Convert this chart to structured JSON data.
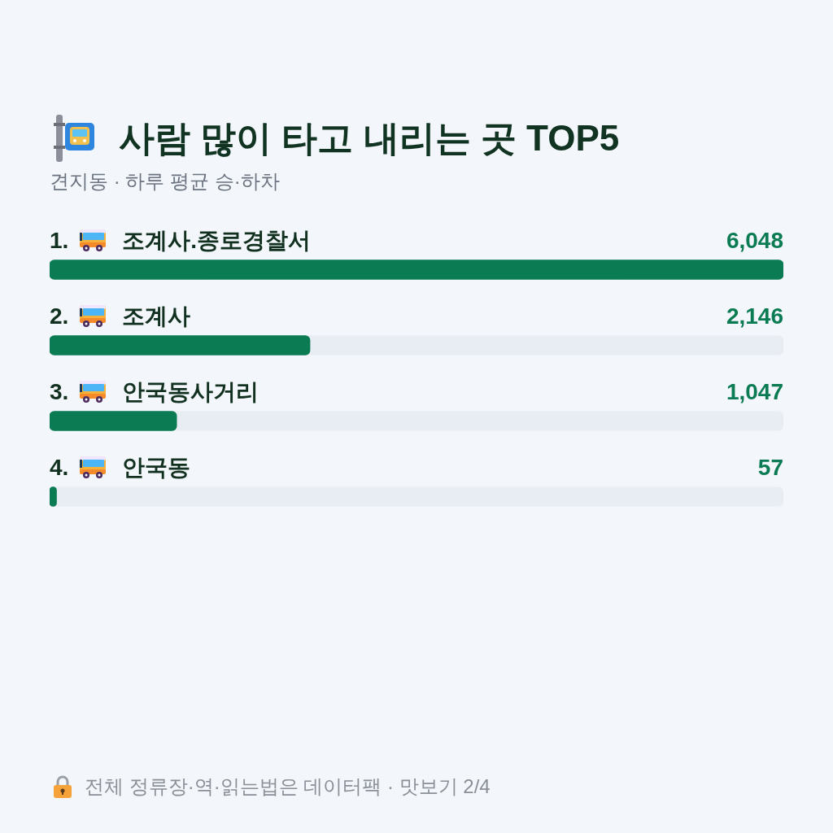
{
  "chart_data": {
    "type": "bar",
    "orientation": "horizontal",
    "title": "사람 많이 타고 내리는 곳 TOP5",
    "subtitle": "견지동 · 하루 평균 승·하차",
    "categories": [
      "1. 조계사.종로경찰서",
      "2. 조계사",
      "3. 안국동사거리",
      "4. 안국동"
    ],
    "values": [
      6048,
      2146,
      1047,
      57
    ],
    "value_labels": [
      "6,048",
      "2,146",
      "1,047",
      "57"
    ],
    "color": "#0a7b53",
    "tick_labels": "y",
    "annotations": [
      "전체 정류장·역·읽는법은 데이터팩 · 맛보기 2/4"
    ]
  }
}
